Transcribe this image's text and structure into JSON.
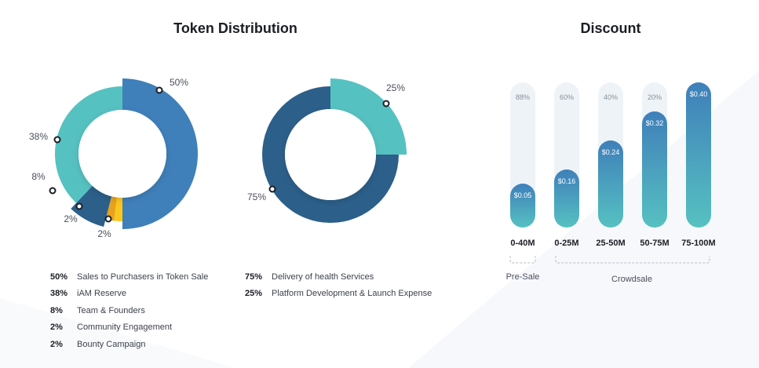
{
  "titles": {
    "token_distribution": "Token Distribution",
    "discount": "Discount"
  },
  "chart_data": [
    {
      "type": "pie",
      "title": "Token Distribution",
      "slices": [
        {
          "pct": 50,
          "label": "50%",
          "name": "Sales to Purchasers in Token Sale",
          "color": "#3f7fba"
        },
        {
          "pct": 2,
          "label": "2%",
          "name": "Bounty Campaign",
          "color": "#fbc71d"
        },
        {
          "pct": 2,
          "label": "2%",
          "name": "Community Engagement",
          "color": "#e8a21c"
        },
        {
          "pct": 8,
          "label": "8%",
          "name": "Team & Founders",
          "color": "#2c5f8a"
        },
        {
          "pct": 38,
          "label": "38%",
          "name": "iAM Reserve",
          "color": "#56c1c1"
        }
      ]
    },
    {
      "type": "pie",
      "slices": [
        {
          "pct": 25,
          "label": "25%",
          "name": "Platform Development & Launch Expense",
          "color": "#56c1c1"
        },
        {
          "pct": 75,
          "label": "75%",
          "name": "Delivery of health Services",
          "color": "#2c5f8a"
        }
      ]
    },
    {
      "type": "bar",
      "title": "Discount",
      "categories": [
        "0-40M",
        "0-25M",
        "25-50M",
        "50-75M",
        "75-100M"
      ],
      "values": [
        0.05,
        0.16,
        0.24,
        0.32,
        0.4
      ],
      "price_labels": [
        "$0.05",
        "$0.16",
        "$0.24",
        "$0.32",
        "$0.40"
      ],
      "discount_labels": [
        "88%",
        "60%",
        "40%",
        "20%",
        ""
      ],
      "ylim": [
        0,
        0.4
      ],
      "groups": [
        "Pre-Sale",
        "Crowdsale"
      ]
    }
  ],
  "legend_left": [
    {
      "pct": "50%",
      "text": "Sales to Purchasers in Token Sale"
    },
    {
      "pct": "38%",
      "text": "iAM Reserve"
    },
    {
      "pct": "8%",
      "text": "Team & Founders"
    },
    {
      "pct": "2%",
      "text": "Community Engagement"
    },
    {
      "pct": "2%",
      "text": "Bounty Campaign"
    }
  ],
  "legend_right": [
    {
      "pct": "75%",
      "text": "Delivery of health Services"
    },
    {
      "pct": "25%",
      "text": "Platform Development & Launch Expense"
    }
  ],
  "colors": {
    "bar_gradient_top": "#3f7fba",
    "bar_gradient_bottom": "#56c1c1",
    "track": "#eef3f8"
  }
}
